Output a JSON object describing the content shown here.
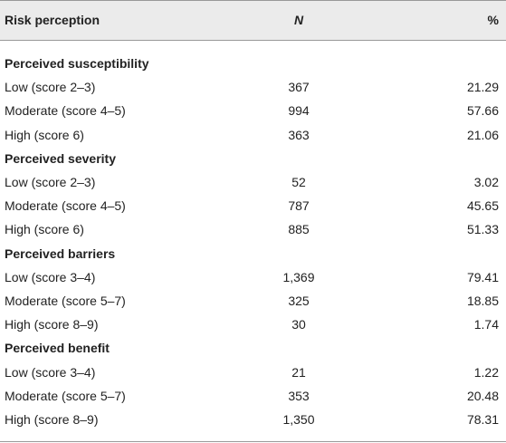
{
  "header": {
    "columns": [
      "Risk perception",
      "N",
      "%"
    ]
  },
  "sections": [
    {
      "title": "Perceived susceptibility",
      "rows": [
        [
          "Low (score 2–3)",
          "367",
          "21.29"
        ],
        [
          "Moderate (score 4–5)",
          "994",
          "57.66"
        ],
        [
          "High (score 6)",
          "363",
          "21.06"
        ]
      ]
    },
    {
      "title": "Perceived severity",
      "rows": [
        [
          "Low (score 2–3)",
          "52",
          "3.02"
        ],
        [
          "Moderate (score 4–5)",
          "787",
          "45.65"
        ],
        [
          "High (score 6)",
          "885",
          "51.33"
        ]
      ]
    },
    {
      "title": "Perceived barriers",
      "rows": [
        [
          "Low (score 3–4)",
          "1,369",
          "79.41"
        ],
        [
          "Moderate (score 5–7)",
          "325",
          "18.85"
        ],
        [
          "High (score 8–9)",
          "30",
          "1.74"
        ]
      ]
    },
    {
      "title": "Perceived benefit",
      "rows": [
        [
          "Low (score 3–4)",
          "21",
          "1.22"
        ],
        [
          "Moderate (score 5–7)",
          "353",
          "20.48"
        ],
        [
          "High (score 8–9)",
          "1,350",
          "78.31"
        ]
      ]
    }
  ]
}
